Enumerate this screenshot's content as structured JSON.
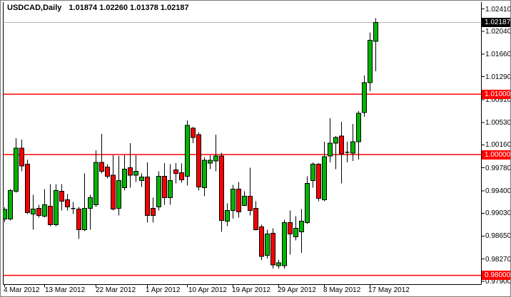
{
  "window": {
    "title_symbol": "USDCAD,Daily",
    "title_ohlc": "1.01874 1.02260 1.01378 1.02187"
  },
  "chart_data": {
    "type": "candlestick",
    "symbol": "USDCAD",
    "timeframe": "Daily",
    "title": "USDCAD,Daily 1.01874 1.02260 1.01378 1.02187",
    "ohlc_display": {
      "open": "1.01874",
      "high": "1.02260",
      "low": "1.01378",
      "close": "1.02187"
    },
    "grid": false,
    "legend": null,
    "colors": {
      "bull": "#00B500",
      "bear": "#F70000",
      "outline": "#000000",
      "level_line": "#FF0000",
      "current_line": "#B5B5B5",
      "current_badge_bg": "#000000",
      "level_badge_bg": "#FF0000",
      "badge_text": "#FFFFFF",
      "background": "#FFFFFF",
      "frame": "#000000"
    },
    "y_axis": {
      "side": "right",
      "ylim": [
        0.97854,
        1.02429
      ],
      "ticks": [
        "1.02410",
        "1.02040",
        "1.01660",
        "1.01290",
        "1.00910",
        "1.00530",
        "1.00160",
        "0.99780",
        "0.99400",
        "0.99030",
        "0.98650",
        "0.98270",
        "0.97900"
      ]
    },
    "x_axis": {
      "labels": [
        {
          "text": "4 Mar 2012",
          "x": 4
        },
        {
          "text": "13 Mar 2012",
          "x": 62
        },
        {
          "text": "22 Mar 2012",
          "x": 133
        },
        {
          "text": "1 Apr 2012",
          "x": 203
        },
        {
          "text": "10 Apr 2012",
          "x": 263
        },
        {
          "text": "19 Apr 2012",
          "x": 324
        },
        {
          "text": "29 Apr 2012",
          "x": 388
        },
        {
          "text": "8 May 2012",
          "x": 452
        },
        {
          "text": "17 May 2012",
          "x": 515
        }
      ],
      "ticks_x": [
        5,
        61,
        133,
        205,
        261,
        325,
        389,
        453,
        517
      ]
    },
    "levels": [
      {
        "price": 1.01,
        "label": "1.01000"
      },
      {
        "price": 1.0,
        "label": "1.00000"
      },
      {
        "price": 0.98,
        "label": "0.98000"
      }
    ],
    "current_price": {
      "price": 1.02187,
      "label": "1.02187"
    },
    "candles": [
      [
        0.9893,
        0.9913,
        0.9888,
        0.99095
      ],
      [
        0.98934,
        0.9943,
        0.9891,
        0.99404
      ],
      [
        0.99392,
        1.00273,
        0.99369,
        1.00108
      ],
      [
        1.00108,
        1.00249,
        0.9972,
        0.99814
      ],
      [
        0.99838,
        0.9992,
        0.99016,
        0.99039
      ],
      [
        0.99016,
        0.99333,
        0.98757,
        0.99098
      ],
      [
        0.9911,
        0.99169,
        0.98957,
        0.98992
      ],
      [
        0.9898,
        0.99427,
        0.98957,
        0.99168
      ],
      [
        0.99145,
        0.99509,
        0.98816,
        0.98839
      ],
      [
        0.98839,
        0.99509,
        0.98816,
        0.99404
      ],
      [
        0.99392,
        0.99509,
        0.99075,
        0.99228
      ],
      [
        0.99251,
        0.99345,
        0.99075,
        0.99133
      ],
      [
        0.99116,
        0.99216,
        0.99016,
        0.99098
      ],
      [
        0.99098,
        0.99133,
        0.98605,
        0.98757
      ],
      [
        0.98757,
        0.99685,
        0.98734,
        0.9911
      ],
      [
        0.9911,
        0.99333,
        0.98757,
        0.99286
      ],
      [
        0.99168,
        1.00073,
        0.99133,
        0.99873
      ],
      [
        0.99873,
        1.00343,
        0.99685,
        0.9972
      ],
      [
        0.99791,
        0.99838,
        0.99603,
        0.99638
      ],
      [
        0.99661,
        0.9999,
        0.99075,
        0.99098
      ],
      [
        0.9911,
        0.99979,
        0.98992,
        0.99568
      ],
      [
        0.99451,
        0.9999,
        0.99404,
        0.99756
      ],
      [
        0.99779,
        1.0019,
        0.99451,
        0.99661
      ],
      [
        0.99661,
        0.9999,
        0.99544,
        0.9972
      ],
      [
        0.99568,
        0.99685,
        0.99462,
        0.99626
      ],
      [
        0.99626,
        0.99873,
        0.98875,
        0.98992
      ],
      [
        0.9911,
        0.99286,
        0.98875,
        0.98992
      ],
      [
        0.99133,
        0.9972,
        0.99075,
        0.99638
      ],
      [
        0.99638,
        0.99861,
        0.99168,
        0.99286
      ],
      [
        0.99286,
        0.99838,
        0.99168,
        0.99568
      ],
      [
        0.99744,
        0.99861,
        0.99521,
        0.99685
      ],
      [
        0.99697,
        0.9985,
        0.99533,
        0.99579
      ],
      [
        0.99641,
        1.00566,
        0.99485,
        1.00484
      ],
      [
        1.00437,
        1.0046,
        1.0019,
        1.00284
      ],
      [
        1.00331,
        1.00366,
        0.99404,
        0.99462
      ],
      [
        0.99451,
        0.99955,
        0.9931,
        0.99908
      ],
      [
        0.99861,
        0.9999,
        0.99756,
        0.99908
      ],
      [
        0.99896,
        1.00331,
        0.9972,
        0.99979
      ],
      [
        0.99979,
        1.0003,
        0.98722,
        0.9891
      ],
      [
        0.98898,
        0.99192,
        0.98816,
        0.99075
      ],
      [
        0.99075,
        0.995,
        0.9894,
        0.99427
      ],
      [
        0.99427,
        0.99545,
        0.98957,
        0.99051
      ],
      [
        0.99157,
        0.99392,
        0.99145,
        0.9931
      ],
      [
        0.9931,
        0.99779,
        0.98992,
        0.99075
      ],
      [
        0.9911,
        0.99228,
        0.98746,
        0.98757
      ],
      [
        0.98804,
        0.98839,
        0.98252,
        0.98311
      ],
      [
        0.98334,
        0.98757,
        0.98276,
        0.98687
      ],
      [
        0.98699,
        0.98781,
        0.98112,
        0.9817
      ],
      [
        0.98159,
        0.98252,
        0.98112,
        0.98206
      ],
      [
        0.98159,
        0.98922,
        0.98112,
        0.98875
      ],
      [
        0.98875,
        0.99075,
        0.98346,
        0.98687
      ],
      [
        0.9864,
        0.9898,
        0.98581,
        0.98781
      ],
      [
        0.98722,
        0.99098,
        0.9837,
        0.98898
      ],
      [
        0.98875,
        0.99638,
        0.98851,
        0.99521
      ],
      [
        0.99568,
        0.99873,
        0.99451,
        0.99838
      ],
      [
        0.99838,
        0.99861,
        0.99228,
        0.99275
      ],
      [
        0.99251,
        1.00214,
        0.99228,
        0.99967
      ],
      [
        0.99979,
        1.00601,
        0.99873,
        1.0019
      ],
      [
        1.0019,
        1.00307,
        0.99756,
        1.00284
      ],
      [
        1.00307,
        1.00542,
        0.99521,
        1.00014
      ],
      [
        1.00026,
        1.00214,
        0.99873,
        1.00049
      ],
      [
        1.00026,
        1.00507,
        0.99896,
        1.00214
      ],
      [
        1.00214,
        1.00719,
        0.9992,
        1.00683
      ],
      [
        1.00695,
        1.01306,
        1.00625,
        1.01189
      ],
      [
        1.01189,
        1.02022,
        1.01048,
        1.0189
      ],
      [
        1.01874,
        1.0226,
        1.01378,
        1.02187
      ]
    ]
  }
}
